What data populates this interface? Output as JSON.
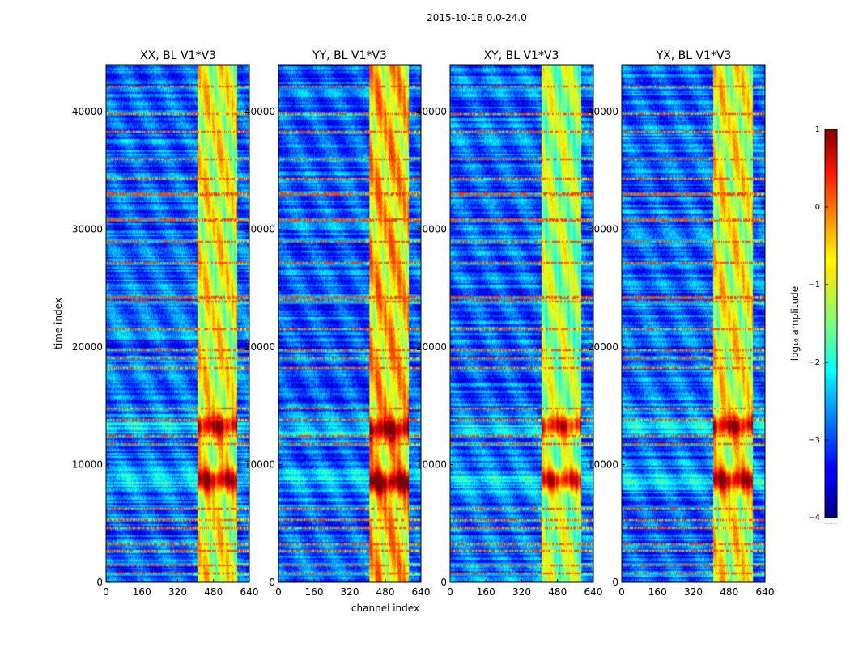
{
  "chart_data": {
    "type": "heatmap",
    "suptitle": "2015-10-18 0.0-24.0",
    "xlabel": "channel index",
    "ylabel": "time index",
    "xlim": [
      0,
      640
    ],
    "ylim": [
      0,
      44000
    ],
    "xticks": [
      "0",
      "160",
      "320",
      "480",
      "640"
    ],
    "yticks": [
      "0",
      "10000",
      "20000",
      "30000",
      "40000"
    ],
    "colormap": "jet",
    "panels": [
      {
        "title": "XX, BL V1*V3",
        "band_strength": 1.0,
        "hot_rows": [
          8700,
          13300
        ]
      },
      {
        "title": "YY, BL V1*V3",
        "band_strength": 1.1,
        "hot_rows": [
          8500,
          13000
        ]
      },
      {
        "title": "XY, BL V1*V3",
        "band_strength": 0.9,
        "hot_rows": [
          8700,
          13300
        ]
      },
      {
        "title": "YX, BL V1*V3",
        "band_strength": 1.0,
        "hot_rows": [
          8700,
          13300
        ]
      }
    ],
    "rfi_band_channels": [
      410,
      585
    ],
    "rfi_sub_channels": [
      430,
      470,
      490,
      530,
      555,
      575
    ],
    "flagged_time_rows": [
      700,
      1500,
      2700,
      3200,
      4600,
      5300,
      6300,
      11700,
      12400,
      13800,
      14800,
      18200,
      19000,
      19700,
      21500,
      23800,
      24200,
      27100,
      29000,
      30800,
      33000,
      34300,
      36000,
      38300,
      39800,
      42100
    ],
    "colorbar": {
      "label": "log₁₀ amplitude",
      "vmin": -4,
      "vmax": 1,
      "ticks": [
        "1",
        "0",
        "−1",
        "−2",
        "−3",
        "−4"
      ],
      "footer": "......"
    }
  }
}
